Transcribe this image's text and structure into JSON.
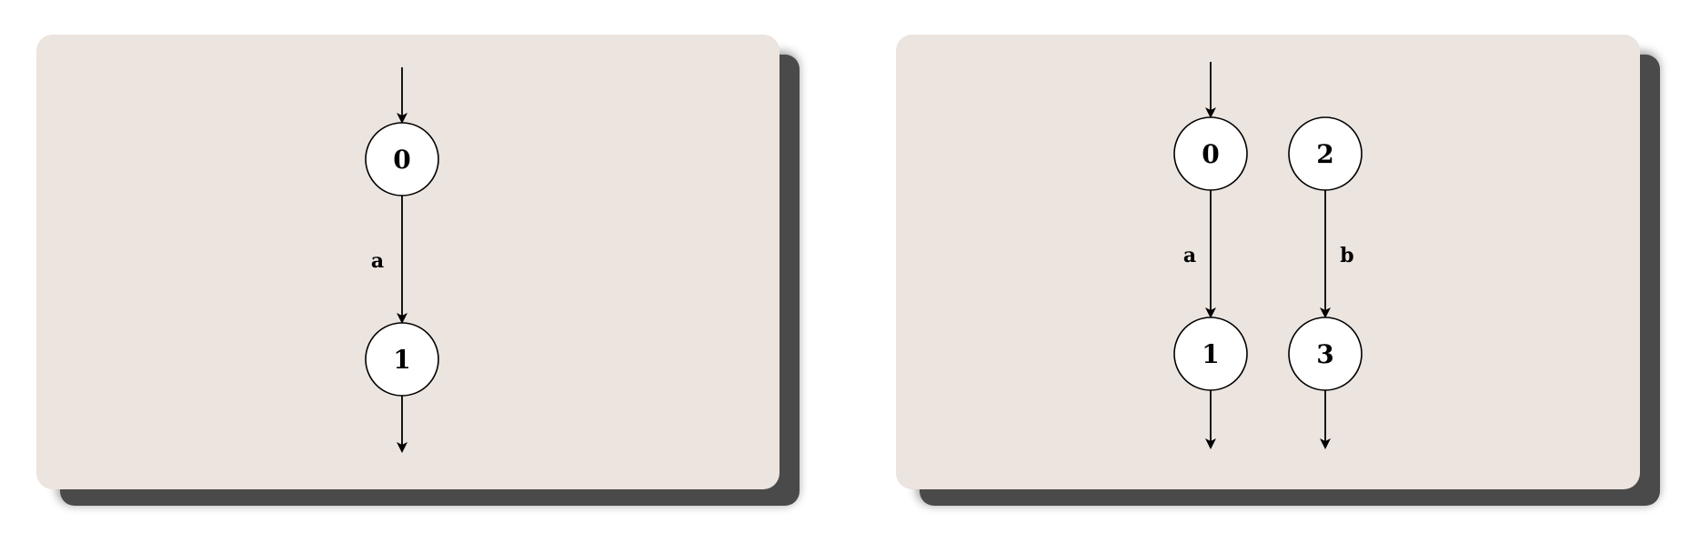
{
  "automata": [
    {
      "states": [
        "0",
        "1"
      ],
      "transitions": [
        {
          "from": "0",
          "to": "1",
          "label": "a"
        }
      ],
      "initial": [
        "0"
      ],
      "final": [
        "1"
      ]
    },
    {
      "states": [
        "0",
        "2",
        "1",
        "3"
      ],
      "transitions": [
        {
          "from": "0",
          "to": "1",
          "label": "a"
        },
        {
          "from": "2",
          "to": "3",
          "label": "b"
        }
      ],
      "initial": [
        "0"
      ],
      "final": [
        "1",
        "3"
      ]
    }
  ]
}
